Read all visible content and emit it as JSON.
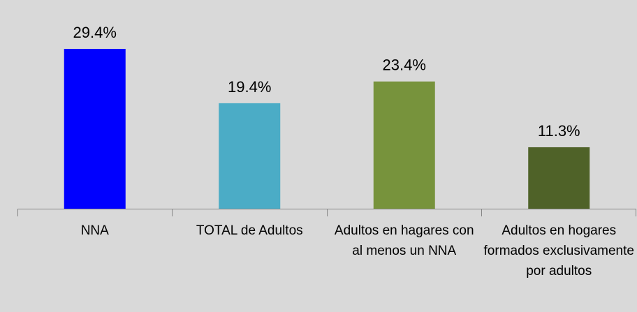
{
  "chart_data": {
    "type": "bar",
    "categories": [
      "NNA",
      "TOTAL de Adultos",
      "Adultos en hagares con al menos un NNA",
      "Adultos en hogares formados exclusivamente por adultos"
    ],
    "values": [
      29.4,
      19.4,
      23.4,
      11.3
    ],
    "value_labels": [
      "29.4%",
      "19.4%",
      "23.4%",
      "11.3%"
    ],
    "colors": [
      "#0000ff",
      "#4bacc6",
      "#77933c",
      "#4f6228"
    ]
  }
}
